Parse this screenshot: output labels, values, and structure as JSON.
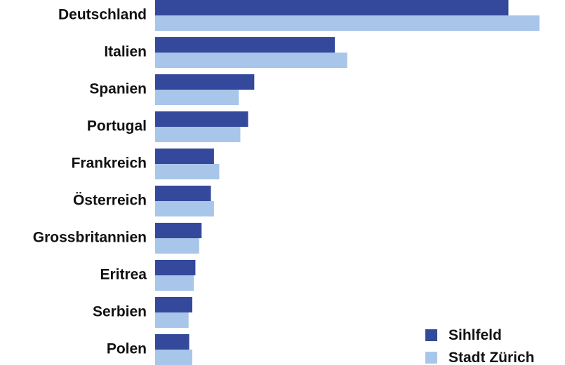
{
  "chart_data": {
    "type": "bar",
    "orientation": "horizontal",
    "categories": [
      "Deutschland",
      "Italien",
      "Spanien",
      "Portugal",
      "Frankreich",
      "Österreich",
      "Grossbritannien",
      "Eritrea",
      "Serbien",
      "Polen"
    ],
    "series": [
      {
        "name": "Sihlfeld",
        "values": [
          11.4,
          5.8,
          3.2,
          3.0,
          1.9,
          1.8,
          1.5,
          1.3,
          1.2,
          1.1
        ]
      },
      {
        "name": "Stadt Zürich",
        "values": [
          12.4,
          6.2,
          2.7,
          2.75,
          2.07,
          1.9,
          1.42,
          1.25,
          1.08,
          1.2
        ]
      }
    ],
    "title": "",
    "xlabel": "",
    "ylabel": "",
    "xlim": [
      0,
      12.5
    ],
    "grid": false,
    "axis_ticks_visible": false,
    "legend_position": "bottom-right",
    "colors": {
      "Sihlfeld": "#34499b",
      "Stadt Zürich": "#a8c6e9"
    }
  }
}
